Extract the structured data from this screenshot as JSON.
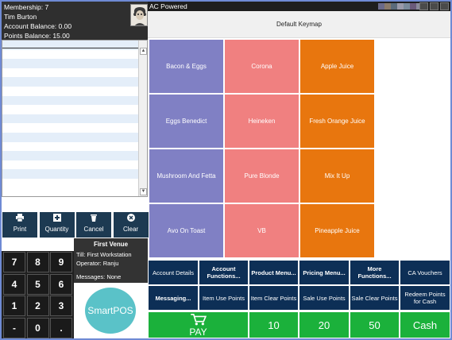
{
  "customer": {
    "membership": "Membership: 7",
    "name": "Tim Burton",
    "account_balance": "Account Balance: 0.00",
    "points_balance": "Points Balance: 15.00"
  },
  "title_bar": {
    "title": "AC Powered"
  },
  "keymap": {
    "title": "Default Keymap"
  },
  "products": [
    {
      "label": "Bacon & Eggs",
      "color": "#8080c4"
    },
    {
      "label": "Corona",
      "color": "#f08080"
    },
    {
      "label": "Apple Juice",
      "color": "#e8760e"
    },
    {
      "label": "Eggs Benedict",
      "color": "#8080c4"
    },
    {
      "label": "Heineken",
      "color": "#f08080"
    },
    {
      "label": "Fresh Orange Juice",
      "color": "#e8760e"
    },
    {
      "label": "Mushroom And Fetta",
      "color": "#8080c4"
    },
    {
      "label": "Pure Blonde",
      "color": "#f08080"
    },
    {
      "label": "Mix It Up",
      "color": "#e8760e"
    },
    {
      "label": "Avo On Toast",
      "color": "#8080c4"
    },
    {
      "label": "VB",
      "color": "#f08080"
    },
    {
      "label": "Pineapple Juice",
      "color": "#e8760e"
    }
  ],
  "actions": [
    {
      "label": "Print",
      "icon": "printer-icon"
    },
    {
      "label": "Quantity",
      "icon": "plus-icon"
    },
    {
      "label": "Cancel",
      "icon": "trash-icon"
    },
    {
      "label": "Clear",
      "icon": "close-circle-icon"
    }
  ],
  "venue": {
    "name": "First Venue",
    "till": "Till: First Workstation",
    "operator": "Operator: Ranju",
    "messages": "Messages: None"
  },
  "numpad": [
    "7",
    "8",
    "9",
    "4",
    "5",
    "6",
    "1",
    "2",
    "3",
    "-",
    "0",
    "."
  ],
  "logo": {
    "text": "SmartPOS"
  },
  "functions_row1": [
    {
      "label": "Account Details",
      "bold": false
    },
    {
      "label": "Account Functions...",
      "bold": true
    },
    {
      "label": "Product Menu...",
      "bold": true
    },
    {
      "label": "Pricing Menu...",
      "bold": true
    },
    {
      "label": "More Functions...",
      "bold": true
    },
    {
      "label": "CA Vouchers",
      "bold": false
    }
  ],
  "functions_row2": [
    {
      "label": "Messaging...",
      "bold": true
    },
    {
      "label": "Item Use Points",
      "bold": false
    },
    {
      "label": "Item Clear Points",
      "bold": false
    },
    {
      "label": "Sale Use Points",
      "bold": false
    },
    {
      "label": "Sale Clear Points",
      "bold": false
    },
    {
      "label": "Redeem Points for Cash",
      "bold": false
    }
  ],
  "pay_row": [
    {
      "label": "PAY",
      "icon": "cart-icon"
    },
    {
      "label": "10"
    },
    {
      "label": "20"
    },
    {
      "label": "50"
    },
    {
      "label": "Cash"
    }
  ],
  "colors": {
    "product_purple": "#8080c4",
    "product_pink": "#f08080",
    "product_orange": "#e8760e",
    "function_navy": "#0d2f56",
    "pay_green": "#1bb13b",
    "action_dark": "#1d3a52"
  }
}
